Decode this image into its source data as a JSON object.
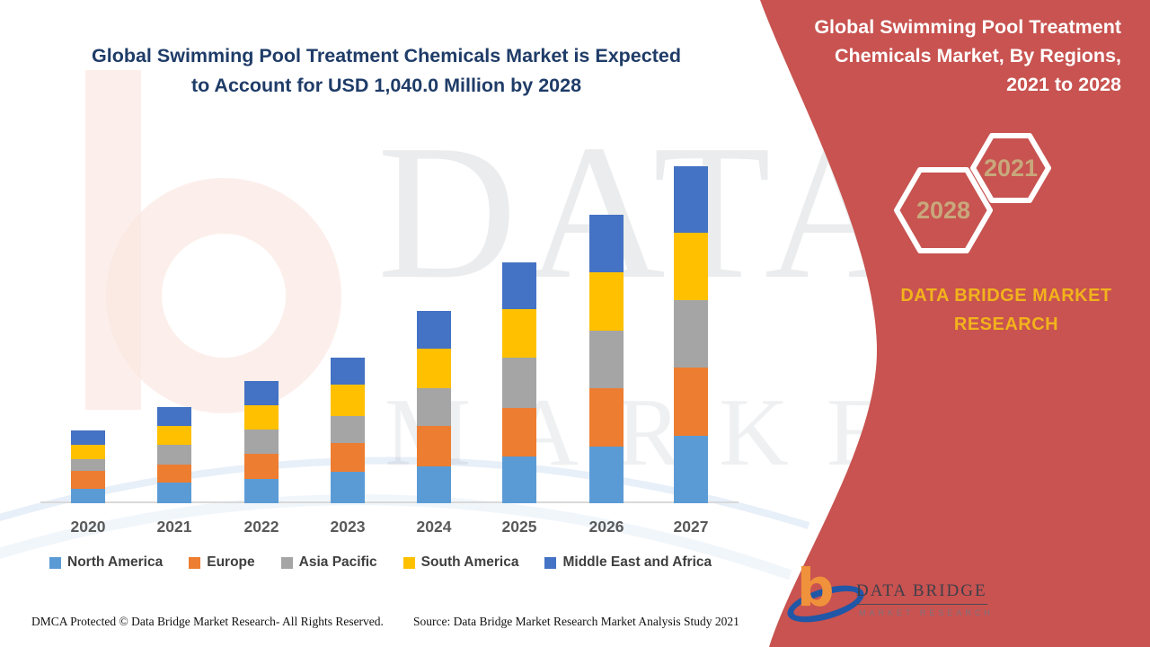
{
  "header": {
    "title_lines": [
      "Global Swimming Pool Treatment Chemicals Market is Expected",
      "to Account for USD 1,040.0 Million by 2028"
    ]
  },
  "chart_data": {
    "type": "bar",
    "stacked": true,
    "title": "Global Swimming Pool Treatment Chemicals Market is Expected to Account for USD 1,040.0 Million by 2028",
    "xlabel": "",
    "ylabel": "",
    "units": "relative height in px — chart displays no value axis; 2028 total stated as USD 1,040.0 Million",
    "grid": false,
    "legend_position": "bottom",
    "categories": [
      "2020",
      "2021",
      "2022",
      "2023",
      "2024",
      "2025",
      "2026",
      "2027"
    ],
    "series": [
      {
        "name": "North America",
        "color": "#5B9BD5",
        "values": [
          16,
          23,
          27,
          35,
          41,
          52,
          63,
          75
        ]
      },
      {
        "name": "Europe",
        "color": "#ED7D31",
        "values": [
          20,
          20,
          28,
          32,
          45,
          54,
          65,
          76
        ]
      },
      {
        "name": "Asia Pacific",
        "color": "#A5A5A5",
        "values": [
          13,
          22,
          27,
          30,
          42,
          56,
          64,
          75
        ]
      },
      {
        "name": "South America",
        "color": "#FFC000",
        "values": [
          16,
          21,
          27,
          35,
          44,
          54,
          65,
          75
        ]
      },
      {
        "name": "Middle East and Africa",
        "color": "#4472C4",
        "values": [
          16,
          21,
          27,
          30,
          42,
          52,
          64,
          74
        ]
      }
    ],
    "totals": [
      81,
      107,
      136,
      162,
      214,
      268,
      321,
      375
    ]
  },
  "side_panel": {
    "panel_color": "#C85350",
    "title_lines": [
      "Global Swimming Pool Treatment",
      "Chemicals Market, By Regions,",
      "2021 to 2028"
    ],
    "hexagons": [
      {
        "year": "2028"
      },
      {
        "year": "2021"
      }
    ],
    "brand_lines": [
      "DATA BRIDGE MARKET",
      "RESEARCH"
    ],
    "brand_color": "#F2B31C",
    "hex_year_color": "#C8A87C"
  },
  "logo": {
    "name": "DATA BRIDGE",
    "subtext": "MARKET RESEARCH"
  },
  "watermark": {
    "text1": "DATA BRIDGE",
    "text2": "MARKET RESEARCH"
  },
  "footer": {
    "dmca": "DMCA Protected © Data Bridge Market Research- All Rights Reserved.",
    "source": "Source: Data Bridge Market Research Market Analysis Study 2021"
  }
}
